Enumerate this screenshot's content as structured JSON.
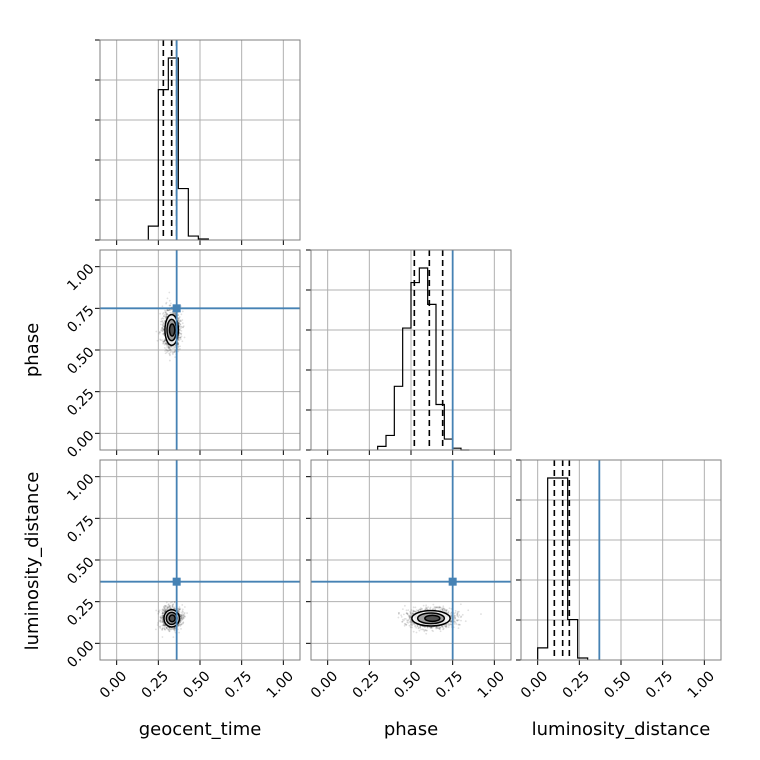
{
  "chart_data": {
    "type": "corner",
    "parameters": [
      "geocent_time",
      "phase",
      "luminosity_distance"
    ],
    "axis_range": [
      -0.1,
      1.1
    ],
    "ticks": [
      0.0,
      0.25,
      0.5,
      0.75,
      1.0
    ],
    "tick_labels": [
      "0.00",
      "0.25",
      "0.50",
      "0.75",
      "1.00"
    ],
    "grid": true,
    "truths": {
      "geocent_time": 0.36,
      "phase": 0.75,
      "luminosity_distance": 0.37
    },
    "colors": {
      "truth": "#4682b4",
      "hist": "#000000",
      "grid": "#b0b0b0"
    },
    "marginals": [
      {
        "parameter": "geocent_time",
        "bins": [
          0.19,
          0.25,
          0.31,
          0.37,
          0.43,
          0.49,
          0.55
        ],
        "counts": [
          0.07,
          0.76,
          0.92,
          0.26,
          0.02,
          0.005
        ],
        "quantiles": [
          0.28,
          0.33,
          0.36
        ]
      },
      {
        "parameter": "phase",
        "bins": [
          0.3,
          0.35,
          0.4,
          0.45,
          0.5,
          0.55,
          0.6,
          0.65,
          0.7,
          0.75,
          0.8,
          0.85
        ],
        "counts": [
          0.02,
          0.08,
          0.35,
          0.67,
          0.92,
          1.0,
          0.8,
          0.25,
          0.06,
          0.01,
          0.0
        ],
        "quantiles": [
          0.52,
          0.61,
          0.69
        ]
      },
      {
        "parameter": "luminosity_distance",
        "bins": [
          0.0,
          0.06,
          0.12,
          0.18,
          0.24,
          0.3
        ],
        "counts": [
          0.06,
          0.9,
          0.9,
          0.2,
          0.01
        ],
        "quantiles": [
          0.1,
          0.15,
          0.19
        ]
      }
    ],
    "pairs": [
      {
        "x": "geocent_time",
        "y": "phase",
        "center": [
          0.33,
          0.62
        ],
        "spread": [
          0.035,
          0.08
        ]
      },
      {
        "x": "geocent_time",
        "y": "luminosity_distance",
        "center": [
          0.33,
          0.15
        ],
        "spread": [
          0.04,
          0.045
        ]
      },
      {
        "x": "phase",
        "y": "luminosity_distance",
        "center": [
          0.62,
          0.15
        ],
        "spread": [
          0.1,
          0.04
        ]
      }
    ]
  }
}
